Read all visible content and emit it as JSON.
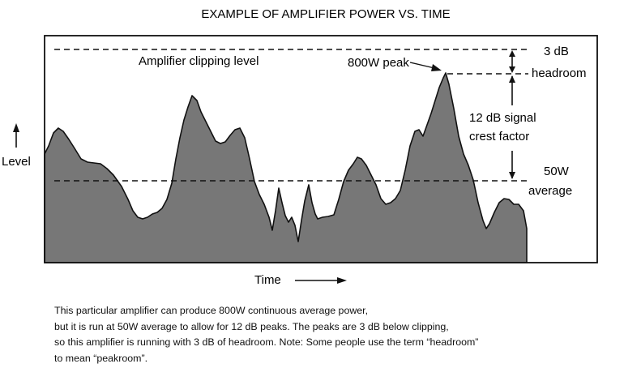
{
  "title": "EXAMPLE OF AMPLIFIER POWER VS. TIME",
  "labels": {
    "level": "Level",
    "time": "Time",
    "clipping": "Amplifier clipping level",
    "peak": "800W peak",
    "headroom_line1": "3 dB",
    "headroom_line2": "headroom",
    "crest_line1": "12 dB signal",
    "crest_line2": "crest factor",
    "average_line1": "50W",
    "average_line2": "average"
  },
  "caption": [
    "This particular amplifier can produce 800W continuous average power,",
    "but it is run at 50W average to allow for 12 dB peaks.  The peaks are 3 dB below clipping,",
    "so this amplifier is running with 3 dB of headroom. Note: Some people use the term “headroom”",
    "to mean “peakroom”."
  ],
  "colors": {
    "waveform_fill": "#777777",
    "line": "#111111"
  }
}
